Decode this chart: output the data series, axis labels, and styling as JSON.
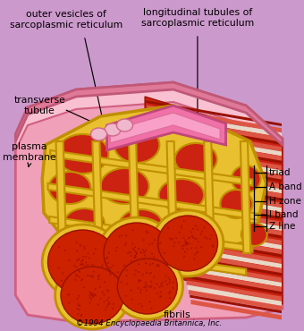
{
  "bg": "#cc99cc",
  "colors": {
    "pink_body": "#f0a0b8",
    "pink_light": "#f8c0d0",
    "pink_deep": "#d06080",
    "red_muscle": "#cc2211",
    "red_dark": "#991100",
    "stripe_light": "#dd5544",
    "white_band": "#e8d8c8",
    "yellow": "#e8c030",
    "yellow_dark": "#c09000",
    "yellow_light": "#f0d860"
  },
  "labels": {
    "outer_vesicles": "outer vesicles of\nsarcoplasmic reticulum",
    "longitudinal_tubules": "longitudinal tubules of\nsarcoplasmic reticulum",
    "transverse_tubule": "transverse\ntubule",
    "plasma_membrane": "plasma\nmembrane",
    "triad": "triad",
    "a_band": "A band",
    "h_zone": "H zone",
    "i_band": "I band",
    "z_line": "Z line",
    "fibrils": "fibrils",
    "copyright": "©1994 Encyclopaedia Britannica, Inc."
  },
  "fig_width": 3.4,
  "fig_height": 3.7,
  "dpi": 100
}
